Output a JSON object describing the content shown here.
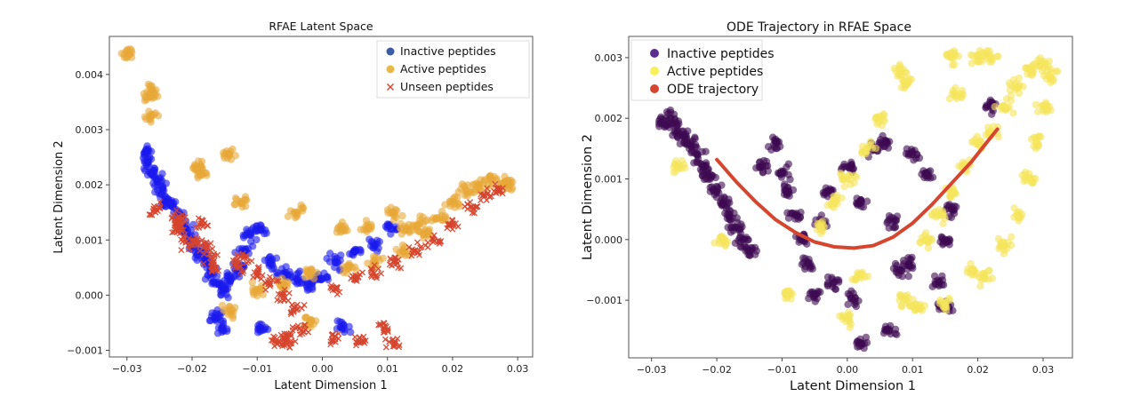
{
  "chart_data": [
    {
      "type": "scatter",
      "title": "RFAE Latent Space",
      "xlabel": "Latent Dimension 1",
      "ylabel": "Latent Dimension 2",
      "xlim": [
        -0.0327,
        0.0323
      ],
      "ylim": [
        -0.00112,
        0.00469
      ],
      "xticks": [
        -0.03,
        -0.02,
        -0.01,
        0.0,
        0.01,
        0.02,
        0.03
      ],
      "xtick_labels": [
        "−0.03",
        "−0.02",
        "−0.01",
        "0.00",
        "0.01",
        "0.02",
        "0.03"
      ],
      "yticks": [
        -0.001,
        0.0,
        0.001,
        0.002,
        0.003,
        0.004
      ],
      "ytick_labels": [
        "−0.001",
        "0.000",
        "0.001",
        "0.002",
        "0.003",
        "0.004"
      ],
      "grid": false,
      "legend_position": "top-right",
      "legend": [
        {
          "label": "Inactive peptides",
          "marker": "circle",
          "color": "#3b5ba5"
        },
        {
          "label": "Active peptides",
          "marker": "circle",
          "color": "#e8b84a"
        },
        {
          "label": "Unseen peptides",
          "marker": "x",
          "color": "#d6452e"
        }
      ],
      "series": [
        {
          "name": "Inactive peptides",
          "color": "#1a1aee",
          "marker": "circle",
          "cluster_description": "dense band from (-0.027, 0.0025) sloping down to (-0.015, 0.0000), sparse tail to (0.003, -0.0003)",
          "points": [
            [
              -0.027,
              0.0026
            ],
            [
              -0.0268,
              0.0024
            ],
            [
              -0.0262,
              0.0022
            ],
            [
              -0.0255,
              0.0021
            ],
            [
              -0.0245,
              0.0019
            ],
            [
              -0.024,
              0.0017
            ],
            [
              -0.023,
              0.0016
            ],
            [
              -0.022,
              0.0014
            ],
            [
              -0.021,
              0.0012
            ],
            [
              -0.02,
              0.001
            ],
            [
              -0.019,
              0.0008
            ],
            [
              -0.018,
              0.0006
            ],
            [
              -0.017,
              0.0004
            ],
            [
              -0.016,
              0.0002
            ],
            [
              -0.015,
              0.0001
            ],
            [
              -0.014,
              0.0003
            ],
            [
              -0.013,
              0.0005
            ],
            [
              -0.012,
              0.0008
            ],
            [
              -0.011,
              0.0011
            ],
            [
              -0.0095,
              0.0012
            ],
            [
              -0.008,
              0.0006
            ],
            [
              -0.006,
              0.0004
            ],
            [
              -0.004,
              0.0003
            ],
            [
              -0.002,
              0.0002
            ],
            [
              0.0,
              0.0003
            ],
            [
              0.002,
              0.0006
            ],
            [
              0.005,
              0.0008
            ],
            [
              0.008,
              0.0009
            ],
            [
              0.0105,
              0.0012
            ],
            [
              -0.0165,
              -0.0004
            ],
            [
              -0.0155,
              -0.0006
            ],
            [
              -0.0095,
              -0.0006
            ],
            [
              0.003,
              -0.0006
            ]
          ]
        },
        {
          "name": "Active peptides",
          "color": "#e8a838",
          "marker": "circle",
          "cluster_description": "dense band from (0.005, 0.0003) rising to (0.028, 0.0021), scattered through the middle, outliers near (-0.03, 0.0044)",
          "points": [
            [
              -0.03,
              0.0044
            ],
            [
              -0.0265,
              0.0036
            ],
            [
              -0.0262,
              0.0037
            ],
            [
              -0.0262,
              0.00325
            ],
            [
              -0.0143,
              0.00255
            ],
            [
              -0.019,
              0.0023
            ],
            [
              -0.0185,
              0.0022
            ],
            [
              -0.0125,
              0.0017
            ],
            [
              -0.004,
              0.0015
            ],
            [
              0.003,
              0.0012
            ],
            [
              0.007,
              0.0012
            ],
            [
              0.011,
              0.0015
            ],
            [
              0.013,
              0.0012
            ],
            [
              0.015,
              0.0013
            ],
            [
              0.018,
              0.0014
            ],
            [
              0.02,
              0.0017
            ],
            [
              0.022,
              0.0019
            ],
            [
              0.024,
              0.002
            ],
            [
              0.026,
              0.0021
            ],
            [
              0.028,
              0.00205
            ],
            [
              0.0285,
              0.002
            ],
            [
              0.016,
              0.0011
            ],
            [
              0.0125,
              0.0008
            ],
            [
              0.008,
              0.0006
            ],
            [
              0.004,
              0.0005
            ],
            [
              -0.002,
              0.0004
            ],
            [
              -0.006,
              0.0002
            ],
            [
              -0.01,
              0.0001
            ],
            [
              -0.014,
              -0.0003
            ],
            [
              -0.002,
              -0.0005
            ]
          ]
        },
        {
          "name": "Unseen peptides",
          "color": "#d6452e",
          "marker": "x",
          "cluster_description": "dense band from (0.003, 0.0000) rising to (0.027, 0.0019), scattered x's toward the left",
          "points": [
            [
              -0.0255,
              0.00155
            ],
            [
              -0.022,
              0.0014
            ],
            [
              -0.022,
              0.0013
            ],
            [
              -0.0185,
              0.0013
            ],
            [
              -0.022,
              0.0012
            ],
            [
              -0.021,
              0.00095
            ],
            [
              -0.0195,
              0.00093
            ],
            [
              -0.018,
              0.0009
            ],
            [
              -0.017,
              0.0007
            ],
            [
              -0.0165,
              0.0005
            ],
            [
              -0.013,
              0.0005
            ],
            [
              -0.012,
              0.0007
            ],
            [
              -0.01,
              0.0004
            ],
            [
              -0.008,
              0.0002
            ],
            [
              -0.006,
              0.0
            ],
            [
              -0.004,
              -0.0002
            ],
            [
              -0.0035,
              -0.0006
            ],
            [
              -0.0055,
              -0.0007
            ],
            [
              -0.007,
              -0.0008
            ],
            [
              -0.0055,
              -0.00085
            ],
            [
              0.002,
              -0.0008
            ],
            [
              0.006,
              -0.00085
            ],
            [
              0.011,
              -0.00085
            ],
            [
              0.0095,
              -0.0006
            ],
            [
              0.002,
              0.0001
            ],
            [
              0.005,
              0.0003
            ],
            [
              0.008,
              0.0004
            ],
            [
              0.011,
              0.0006
            ],
            [
              0.014,
              0.0008
            ],
            [
              0.017,
              0.001
            ],
            [
              0.02,
              0.0013
            ],
            [
              0.023,
              0.0016
            ],
            [
              0.025,
              0.0018
            ],
            [
              0.027,
              0.0019
            ]
          ]
        }
      ]
    },
    {
      "type": "scatter",
      "title": "ODE Trajectory in RFAE Space",
      "xlabel": "Latent Dimension 1",
      "ylabel": "Latent Dimension 2",
      "xlim": [
        -0.0335,
        0.0345
      ],
      "ylim": [
        -0.00195,
        0.00335
      ],
      "xticks": [
        -0.03,
        -0.02,
        -0.01,
        0.0,
        0.01,
        0.02,
        0.03
      ],
      "xtick_labels": [
        "−0.03",
        "−0.02",
        "−0.01",
        "0.00",
        "0.01",
        "0.02",
        "0.03"
      ],
      "yticks": [
        -0.001,
        0.0,
        0.001,
        0.002,
        0.003
      ],
      "ytick_labels": [
        "−0.001",
        "0.000",
        "0.001",
        "0.002",
        "0.003"
      ],
      "grid": false,
      "legend_position": "top-left",
      "legend": [
        {
          "label": "Inactive peptides",
          "marker": "circle",
          "color": "#5b2d8e"
        },
        {
          "label": "Active peptides",
          "marker": "circle",
          "color": "#f7f05a"
        },
        {
          "label": "ODE trajectory",
          "marker": "circle",
          "color": "#d6452e"
        }
      ],
      "series": [
        {
          "name": "Inactive peptides",
          "color": "#3d0a52",
          "marker": "circle",
          "cluster_description": "dense band from (-0.028, 0.0019) sloping down to (-0.015, 0.0002), sparse scatter to (0.015, -0.001)",
          "points": [
            [
              -0.028,
              0.0019
            ],
            [
              -0.027,
              0.002
            ],
            [
              -0.026,
              0.0018
            ],
            [
              -0.025,
              0.0017
            ],
            [
              -0.024,
              0.0016
            ],
            [
              -0.023,
              0.0014
            ],
            [
              -0.022,
              0.0012
            ],
            [
              -0.021,
              0.001
            ],
            [
              -0.02,
              0.0008
            ],
            [
              -0.019,
              0.0006
            ],
            [
              -0.018,
              0.0004
            ],
            [
              -0.017,
              0.0002
            ],
            [
              -0.016,
              0.0
            ],
            [
              -0.015,
              -0.0002
            ],
            [
              -0.013,
              0.0012
            ],
            [
              -0.011,
              0.0016
            ],
            [
              -0.01,
              0.0011
            ],
            [
              -0.009,
              0.0008
            ],
            [
              -0.008,
              0.0004
            ],
            [
              -0.007,
              0.0
            ],
            [
              -0.006,
              -0.0004
            ],
            [
              -0.005,
              -0.0009
            ],
            [
              -0.004,
              0.0003
            ],
            [
              -0.003,
              0.0008
            ],
            [
              -0.002,
              -0.0007
            ],
            [
              0.0,
              0.0012
            ],
            [
              0.001,
              -0.001
            ],
            [
              0.002,
              0.0006
            ],
            [
              0.004,
              0.0015
            ],
            [
              0.006,
              0.0016
            ],
            [
              0.007,
              0.0003
            ],
            [
              0.008,
              -0.0005
            ],
            [
              0.0095,
              -0.0004
            ],
            [
              0.01,
              0.0014
            ],
            [
              0.012,
              0.0011
            ],
            [
              0.014,
              -0.0007
            ],
            [
              0.015,
              -0.0011
            ],
            [
              0.016,
              0.0005
            ],
            [
              0.015,
              0.0
            ],
            [
              0.022,
              0.0022
            ],
            [
              0.0065,
              -0.0015
            ],
            [
              0.002,
              -0.0017
            ]
          ]
        },
        {
          "name": "Active peptides",
          "color": "#f5e55c",
          "marker": "circle",
          "cluster_description": "dense band from (0.012, 0.0000) rising to (0.031, 0.0029), sparse scatter toward the middle",
          "points": [
            [
              0.012,
              0.0
            ],
            [
              0.014,
              0.0004
            ],
            [
              0.016,
              0.0008
            ],
            [
              0.018,
              0.0012
            ],
            [
              0.02,
              0.0016
            ],
            [
              0.022,
              0.0018
            ],
            [
              0.024,
              0.0022
            ],
            [
              0.026,
              0.0025
            ],
            [
              0.028,
              0.0028
            ],
            [
              0.03,
              0.0029
            ],
            [
              0.031,
              0.0027
            ],
            [
              0.03,
              0.0022
            ],
            [
              0.029,
              0.0016
            ],
            [
              0.028,
              0.001
            ],
            [
              0.026,
              0.0004
            ],
            [
              0.024,
              -0.0001
            ],
            [
              0.021,
              -0.0006
            ],
            [
              0.019,
              -0.0005
            ],
            [
              0.017,
              0.0024
            ],
            [
              0.016,
              0.003
            ],
            [
              0.02,
              0.003
            ],
            [
              0.022,
              0.003
            ],
            [
              0.008,
              0.0028
            ],
            [
              0.009,
              0.0026
            ],
            [
              0.005,
              0.002
            ],
            [
              0.003,
              0.0015
            ],
            [
              0.0,
              0.001
            ],
            [
              -0.002,
              0.0006
            ],
            [
              -0.004,
              0.0002
            ],
            [
              0.002,
              -0.0006
            ],
            [
              0.009,
              -0.001
            ],
            [
              0.011,
              -0.0011
            ],
            [
              0.015,
              -0.0011
            ],
            [
              0.0,
              -0.0013
            ],
            [
              -0.009,
              -0.0009
            ],
            [
              -0.019,
              0.0
            ],
            [
              -0.026,
              0.0012
            ]
          ]
        },
        {
          "name": "ODE trajectory",
          "color": "#d6452e",
          "marker": "line",
          "points": [
            [
              -0.02,
              0.00132
            ],
            [
              -0.017,
              0.00095
            ],
            [
              -0.014,
              0.00062
            ],
            [
              -0.011,
              0.00033
            ],
            [
              -0.008,
              0.00012
            ],
            [
              -0.005,
              -4e-05
            ],
            [
              -0.002,
              -0.00012
            ],
            [
              0.001,
              -0.00014
            ],
            [
              0.004,
              -0.0001
            ],
            [
              0.007,
              4e-05
            ],
            [
              0.01,
              0.00027
            ],
            [
              0.013,
              0.00058
            ],
            [
              0.016,
              0.00093
            ],
            [
              0.019,
              0.00128
            ],
            [
              0.021,
              0.00155
            ],
            [
              0.023,
              0.00182
            ]
          ]
        }
      ]
    }
  ]
}
